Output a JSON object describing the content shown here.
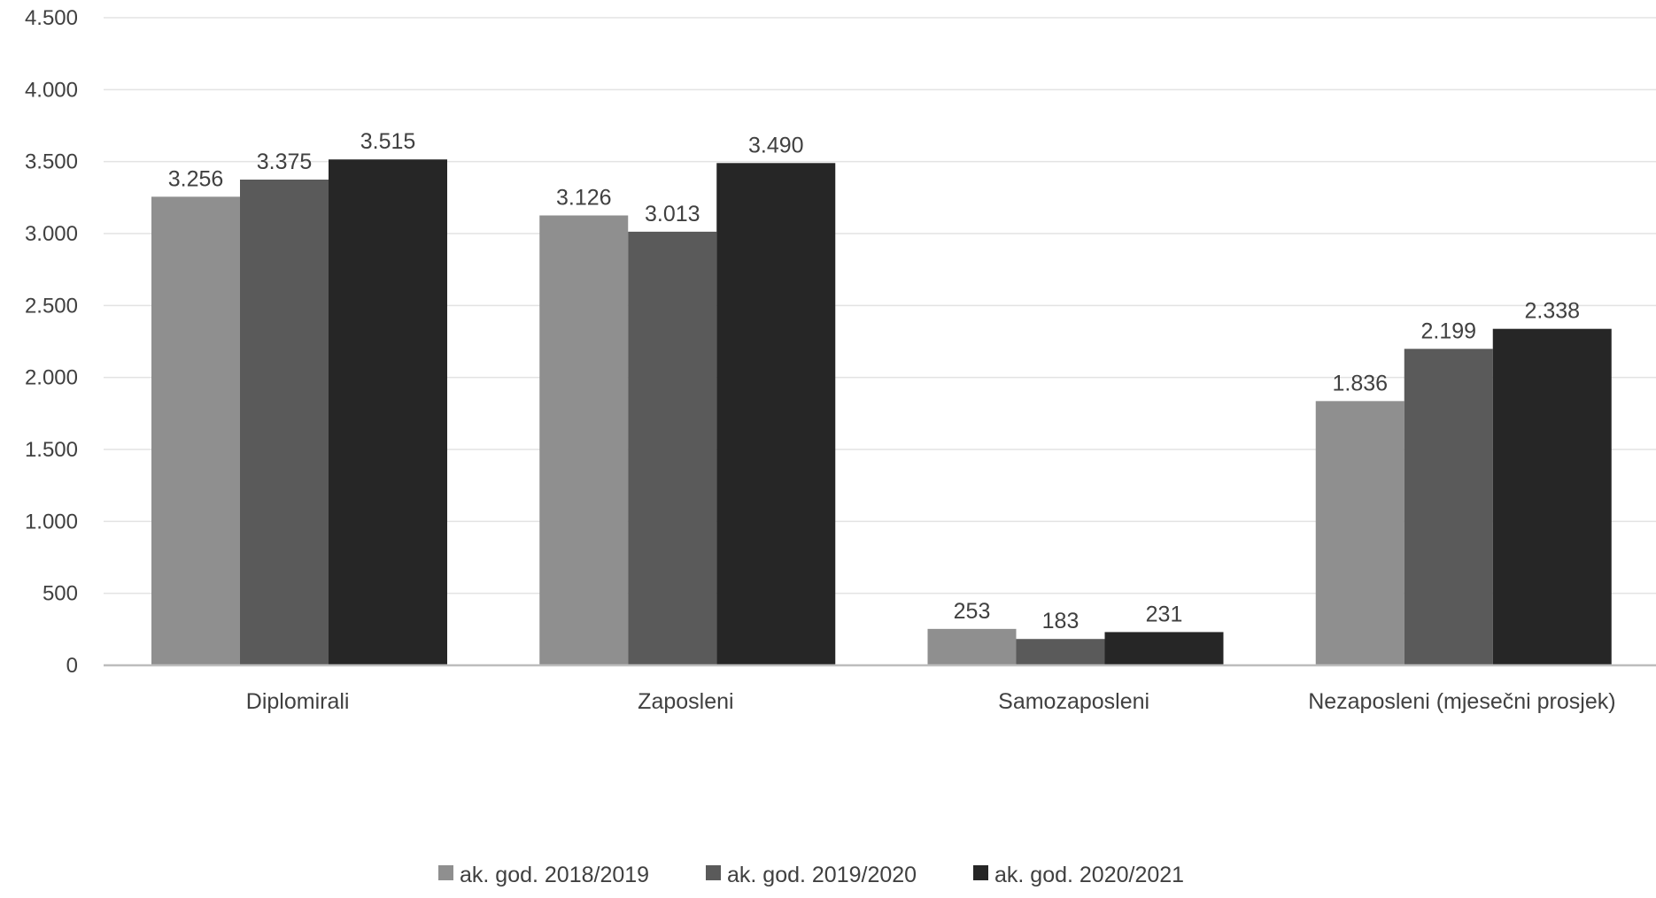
{
  "chart_data": {
    "type": "bar",
    "title": "",
    "xlabel": "",
    "ylabel": "",
    "ylim": [
      0,
      4500
    ],
    "y_ticks": [
      0,
      500,
      1000,
      1500,
      2000,
      2500,
      3000,
      3500,
      4000,
      4500
    ],
    "y_tick_labels": [
      "0",
      "500",
      "1.000",
      "1.500",
      "2.000",
      "2.500",
      "3.000",
      "3.500",
      "4.000",
      "4.500"
    ],
    "grid": true,
    "legend_position": "bottom",
    "categories": [
      "Diplomirali",
      "Zaposleni",
      "Samozaposleni",
      "Nezaposleni (mjesečni prosjek)"
    ],
    "series": [
      {
        "name": "ak. god. 2018/2019",
        "color": "#8f8f8f",
        "values": [
          3256,
          3126,
          253,
          1836
        ],
        "labels": [
          "3.256",
          "3.126",
          "253",
          "1.836"
        ]
      },
      {
        "name": "ak. god. 2019/2020",
        "color": "#5a5a5a",
        "values": [
          3375,
          3013,
          183,
          2199
        ],
        "labels": [
          "3.375",
          "3.013",
          "183",
          "2.199"
        ]
      },
      {
        "name": "ak. god. 2020/2021",
        "color": "#262626",
        "values": [
          3515,
          3490,
          231,
          2338
        ],
        "labels": [
          "3.515",
          "3.490",
          "231",
          "2.338"
        ]
      }
    ]
  }
}
